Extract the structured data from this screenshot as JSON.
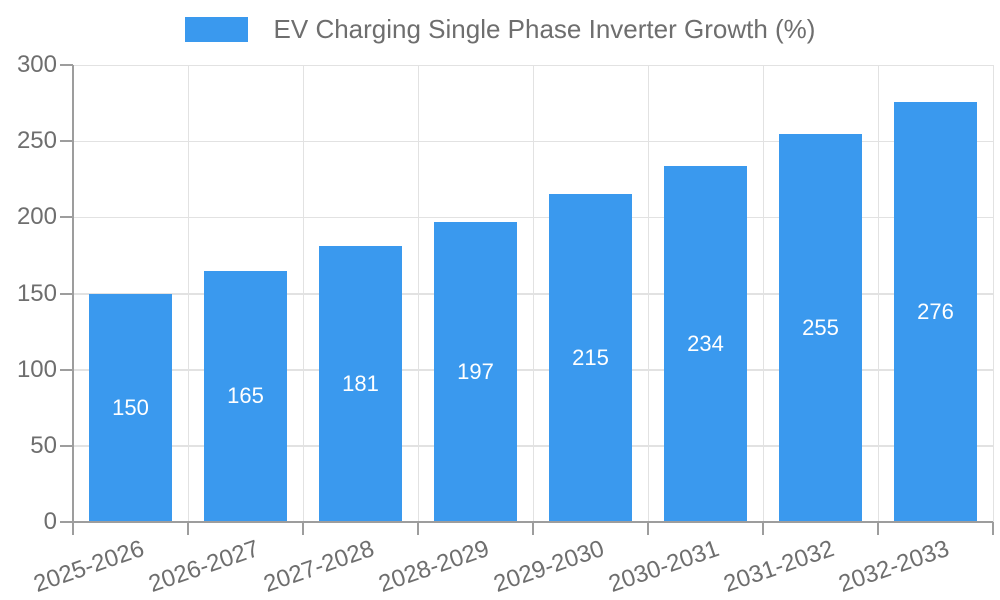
{
  "chart_data": {
    "type": "bar",
    "title": "EV Charging Single Phase Inverter Growth (%)",
    "categories": [
      "2025-2026",
      "2026-2027",
      "2027-2028",
      "2028-2029",
      "2029-2030",
      "2030-2031",
      "2031-2032",
      "2032-2033"
    ],
    "values": [
      150,
      165,
      181,
      197,
      215,
      234,
      255,
      276
    ],
    "xlabel": "",
    "ylabel": "",
    "ylim": [
      0,
      300
    ],
    "yticks": [
      0,
      50,
      100,
      150,
      200,
      250,
      300
    ],
    "grid": "both",
    "legend_position": "top",
    "bar_color": "#3a99ee",
    "bar_label_color": "#ffffff",
    "axis_text_color": "#6e6e6e",
    "axis_line_color": "#9d9d9d",
    "grid_color": "#e2e2e2"
  }
}
